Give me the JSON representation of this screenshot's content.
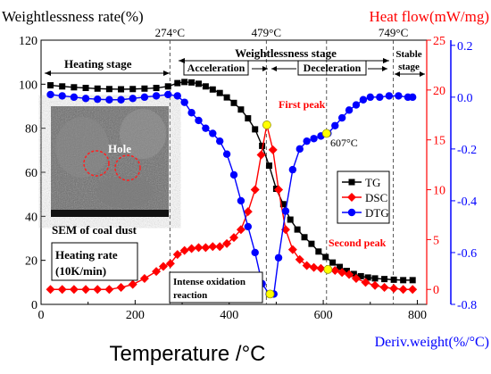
{
  "chart_data": {
    "type": "line",
    "title": "",
    "xlabel": "Temperature /°C",
    "xlim": [
      0,
      820
    ],
    "x_ticks": [
      "0",
      "200",
      "400",
      "600",
      "800"
    ],
    "y_axes": {
      "left": {
        "label": "Weightlessness rate(%)",
        "lim": [
          0,
          120
        ],
        "ticks": [
          "0",
          "20",
          "40",
          "60",
          "80",
          "100",
          "120"
        ],
        "color": "#000000"
      },
      "right1": {
        "label": "Heat flow(mW/mg)",
        "lim": [
          -1.5,
          25
        ],
        "ticks": [
          "0",
          "5",
          "10",
          "15",
          "20",
          "25"
        ],
        "color": "#ff0000"
      },
      "right2": {
        "label": "Deriv.weight(%/°C)",
        "lim": [
          -0.8,
          0.22
        ],
        "ticks": [
          "-0.8",
          "-0.6",
          "-0.4",
          "-0.2",
          "0.0",
          "0.2"
        ],
        "color": "#0000ff"
      }
    },
    "series": [
      {
        "name": "TG",
        "axis": "left",
        "color": "#000000",
        "marker": "square",
        "x": [
          20,
          45,
          70,
          95,
          120,
          145,
          170,
          195,
          220,
          245,
          270,
          290,
          305,
          320,
          335,
          350,
          365,
          380,
          395,
          410,
          425,
          440,
          455,
          470,
          485,
          500,
          515,
          530,
          545,
          560,
          575,
          590,
          605,
          620,
          635,
          650,
          665,
          680,
          695,
          710,
          730,
          750,
          770,
          790
        ],
        "y": [
          99.5,
          99,
          98.6,
          98.3,
          98,
          97.8,
          97.7,
          97.8,
          98,
          98.3,
          99,
          100.5,
          101,
          100.8,
          100.2,
          99,
          97.6,
          96,
          94,
          91.5,
          88.5,
          84.5,
          79.5,
          72,
          63,
          52.5,
          45.5,
          38.5,
          34,
          30.5,
          27.5,
          24,
          21.5,
          19,
          17,
          15.2,
          13.8,
          12.8,
          12.2,
          11.8,
          11.5,
          11.2,
          11,
          11
        ]
      },
      {
        "name": "DSC",
        "axis": "right1",
        "color": "#ff0000",
        "marker": "diamond",
        "x": [
          20,
          45,
          70,
          95,
          120,
          145,
          170,
          195,
          220,
          245,
          260,
          275,
          290,
          305,
          320,
          335,
          350,
          365,
          380,
          395,
          410,
          425,
          440,
          455,
          468,
          480,
          493,
          505,
          520,
          535,
          550,
          565,
          580,
          595,
          610,
          625,
          640,
          655,
          670,
          690,
          710,
          730,
          750,
          770,
          790
        ],
        "y": [
          0,
          0,
          0,
          0,
          0,
          0,
          0.2,
          0.5,
          1.1,
          1.8,
          2.3,
          2.6,
          3.5,
          3.9,
          4.1,
          4.2,
          4.2,
          4.3,
          4.3,
          4.6,
          5.2,
          6.0,
          7.8,
          10.0,
          13.5,
          16.5,
          14.0,
          10.0,
          6.0,
          4.0,
          3.0,
          2.4,
          2.2,
          2.1,
          2.0,
          1.9,
          1.7,
          1.5,
          1.1,
          0.7,
          0.4,
          0.2,
          0.1,
          0,
          0
        ]
      },
      {
        "name": "DTG",
        "axis": "right2",
        "color": "#0000ff",
        "marker": "circle",
        "x": [
          20,
          45,
          70,
          95,
          120,
          145,
          170,
          195,
          220,
          245,
          270,
          290,
          305,
          320,
          335,
          350,
          365,
          380,
          395,
          410,
          425,
          440,
          455,
          470,
          485,
          495,
          505,
          520,
          535,
          550,
          565,
          580,
          595,
          610,
          625,
          640,
          655,
          670,
          685,
          700,
          720,
          740,
          760,
          780,
          790
        ],
        "y": [
          0.01,
          0.005,
          0.0,
          -0.005,
          -0.008,
          -0.01,
          -0.01,
          -0.005,
          0.0,
          0.005,
          0.01,
          0.005,
          -0.02,
          -0.06,
          -0.09,
          -0.12,
          -0.14,
          -0.17,
          -0.22,
          -0.3,
          -0.4,
          -0.5,
          -0.6,
          -0.72,
          -0.76,
          -0.76,
          -0.62,
          -0.44,
          -0.28,
          -0.2,
          -0.17,
          -0.16,
          -0.15,
          -0.14,
          -0.11,
          -0.08,
          -0.05,
          -0.03,
          -0.01,
          0.0,
          0.0,
          0.005,
          0.005,
          0.0,
          0.0
        ]
      }
    ],
    "vlines_x": [
      274,
      479,
      607,
      749
    ],
    "top_labels": [
      {
        "x": 274,
        "text": "274°C"
      },
      {
        "x": 479,
        "text": "479°C"
      },
      {
        "x": 749,
        "text": "749°C"
      }
    ],
    "stage_labels": {
      "heating_stage": "Heating stage",
      "weightlessness_stage": "Weightlessness  stage",
      "acceleration": "Acceleration",
      "deceleration": "Deceleration",
      "stable_stage_line1": "Stable",
      "stable_stage_line2": "stage"
    },
    "annotations": {
      "first_peak": "First peak",
      "second_peak": "Second peak",
      "temp_607": "607°C",
      "heating_rate_line1": "Heating rate",
      "heating_rate_line2": "(10K/min)",
      "intense_oxidation_line1": "Intense oxidation",
      "intense_oxidation_line2": "reaction",
      "sem_caption": "SEM of coal dust",
      "sem_hole_label": "Hole"
    },
    "highlight_points": [
      {
        "x": 480,
        "axis": "right1",
        "y": 16.5,
        "color": "#ffff00"
      },
      {
        "x": 610,
        "axis": "right1",
        "y": 2.0,
        "color": "#ffff00"
      },
      {
        "x": 607,
        "axis": "right2",
        "y": -0.14,
        "color": "#ffff00"
      },
      {
        "x": 487,
        "axis": "right2",
        "y": -0.76,
        "color": "#ffff00"
      }
    ],
    "legend": {
      "placement": "right-middle",
      "entries": [
        "TG",
        "DSC",
        "DTG"
      ]
    },
    "grid": false
  }
}
